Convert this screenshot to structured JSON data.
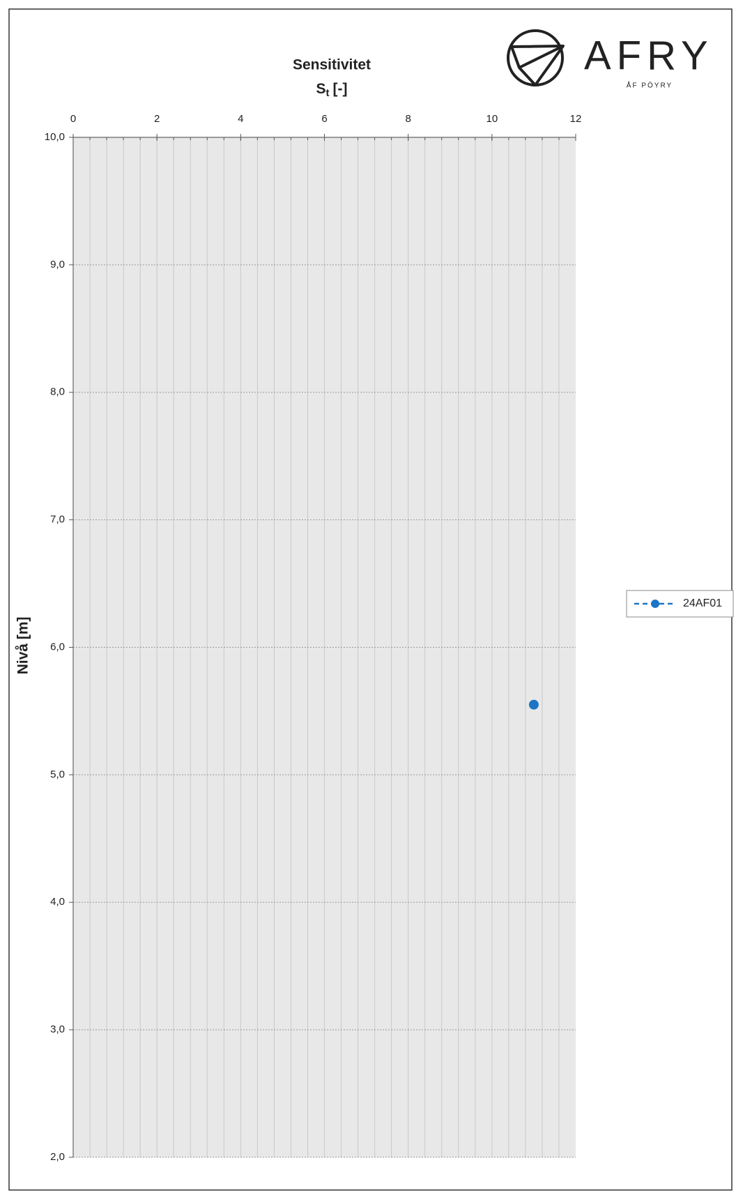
{
  "chart_data": {
    "type": "scatter",
    "title": "Sensitivitet",
    "x_label": {
      "symbol": "S",
      "subscript": "t",
      "unit": "[-]"
    },
    "y_label": "Nivå [m]",
    "logo": {
      "name": "AFRY",
      "tagline": "ÅF PÖYRY"
    },
    "series": [
      {
        "name": "24AF01",
        "color": "#1c74c6",
        "line_style": "dashed",
        "x": [
          11
        ],
        "values": [
          5.55
        ]
      }
    ],
    "xlim": [
      0,
      12
    ],
    "xticks": [
      0,
      2,
      4,
      6,
      8,
      10,
      12
    ],
    "x_minor_step": 0.4,
    "ylim": [
      2,
      10
    ],
    "yticks": [
      {
        "value": 2,
        "label": "2,0"
      },
      {
        "value": 3,
        "label": "3,0"
      },
      {
        "value": 4,
        "label": "4,0"
      },
      {
        "value": 5,
        "label": "5,0"
      },
      {
        "value": 6,
        "label": "6,0"
      },
      {
        "value": 7,
        "label": "7,0"
      },
      {
        "value": 8,
        "label": "8,0"
      },
      {
        "value": 9,
        "label": "9,0"
      },
      {
        "value": 10,
        "label": "10,0"
      }
    ],
    "x_axis_position": "top",
    "grid": true,
    "legend": "right"
  }
}
